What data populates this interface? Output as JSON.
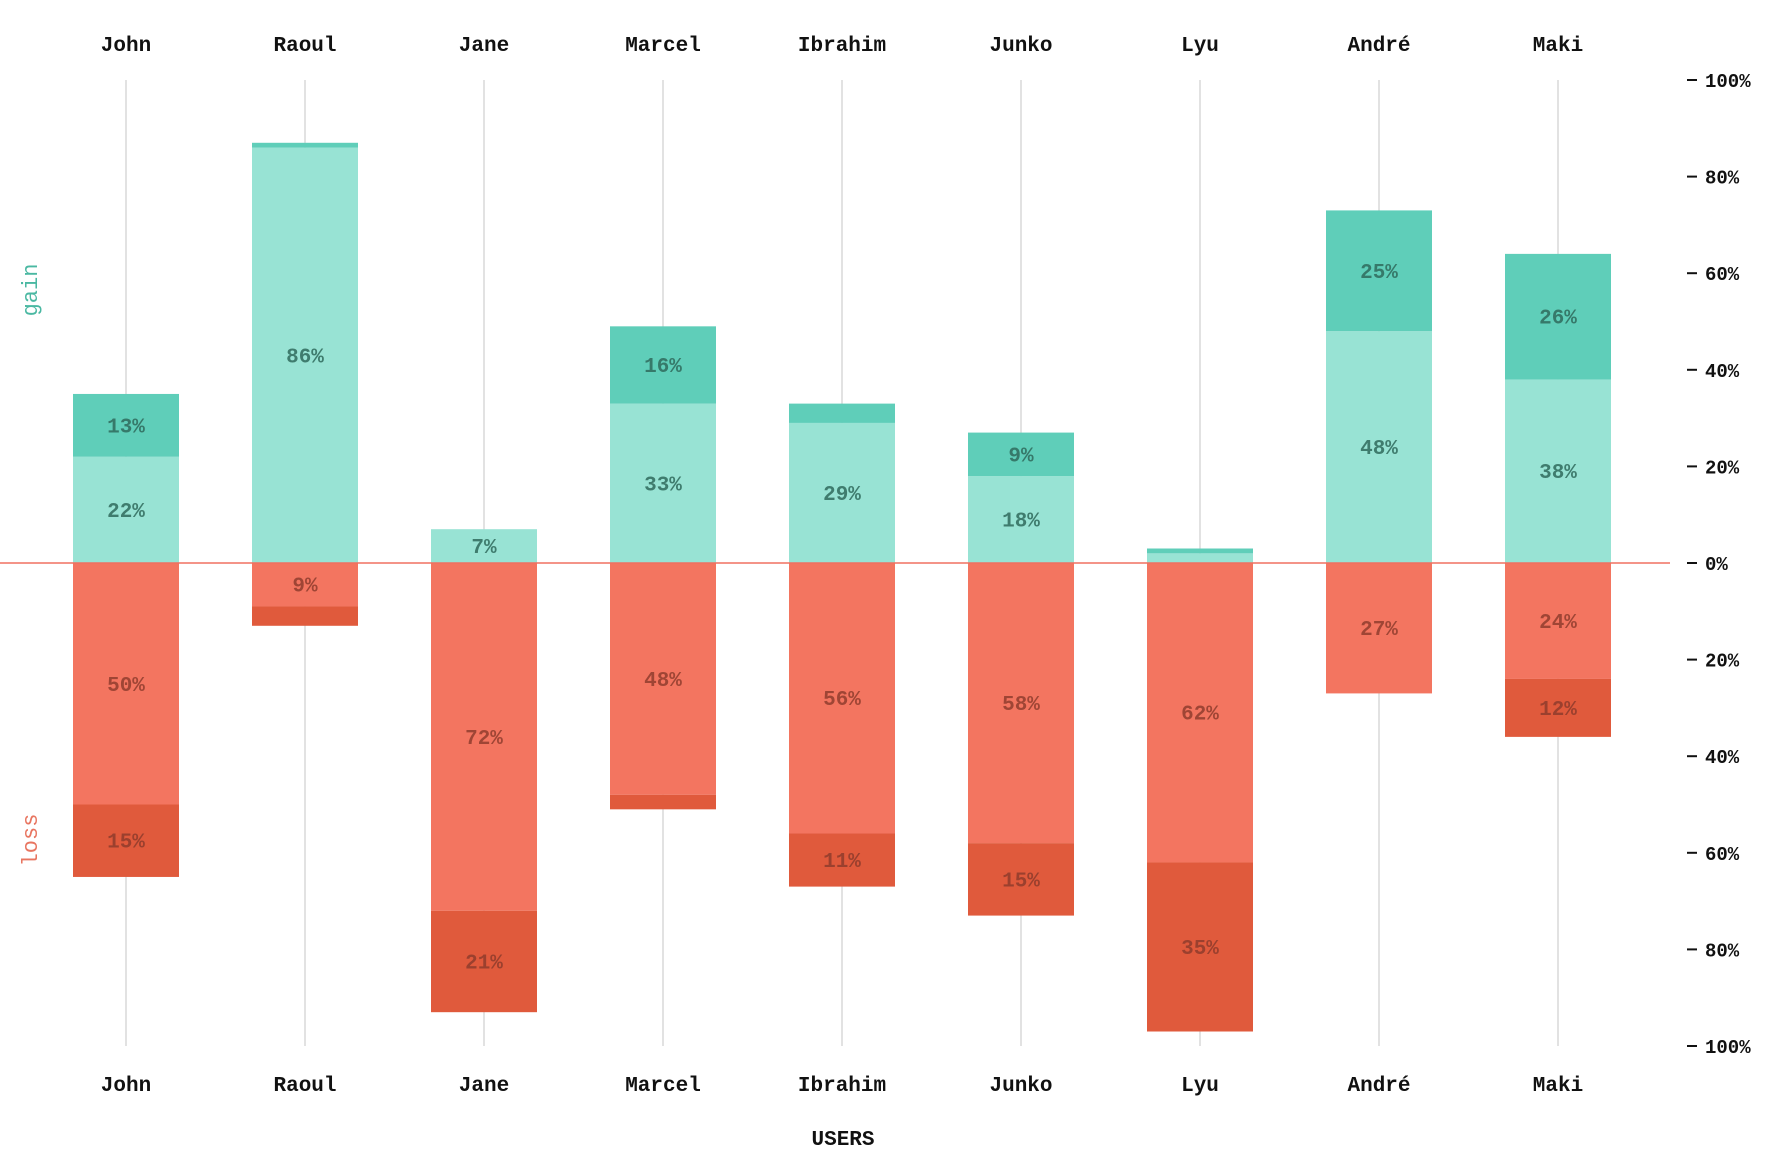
{
  "chart_data": {
    "type": "bar",
    "subtype": "diverging-stacked",
    "categories": [
      "John",
      "Raoul",
      "Jane",
      "Marcel",
      "Ibrahim",
      "Junko",
      "Lyu",
      "André",
      "Maki"
    ],
    "series": [
      {
        "name": "gain",
        "group": "gain",
        "color": "#98e3d4",
        "values": [
          22,
          86,
          7,
          33,
          29,
          18,
          2,
          48,
          38
        ]
      },
      {
        "name": "gain",
        "group": "gain",
        "color": "#5fceb9",
        "values": [
          13,
          1,
          0,
          16,
          4,
          9,
          1,
          25,
          26
        ]
      },
      {
        "name": "loss",
        "group": "loss",
        "color": "#f37560",
        "values": [
          50,
          9,
          72,
          48,
          56,
          58,
          62,
          27,
          24
        ]
      },
      {
        "name": "loss",
        "group": "loss",
        "color": "#e05a3c",
        "values": [
          15,
          4,
          21,
          3,
          11,
          15,
          35,
          0,
          12
        ]
      }
    ],
    "side_labels": {
      "gain": "gain",
      "loss": "loss"
    },
    "ylim": [
      -100,
      100
    ],
    "y_ticks": [
      "100%",
      "80%",
      "60%",
      "40%",
      "20%",
      "0%",
      "20%",
      "40%",
      "60%",
      "80%",
      "100%"
    ],
    "xlabel": "USERS",
    "ylabel": "",
    "grid": "vertical",
    "legend": "none",
    "colors": {
      "gain_text": "#4ab8a2",
      "loss_text": "#e87560",
      "zero_line": "#f07060",
      "gridline": "#d9d9d9",
      "value_text": "#2f6a5c"
    }
  }
}
